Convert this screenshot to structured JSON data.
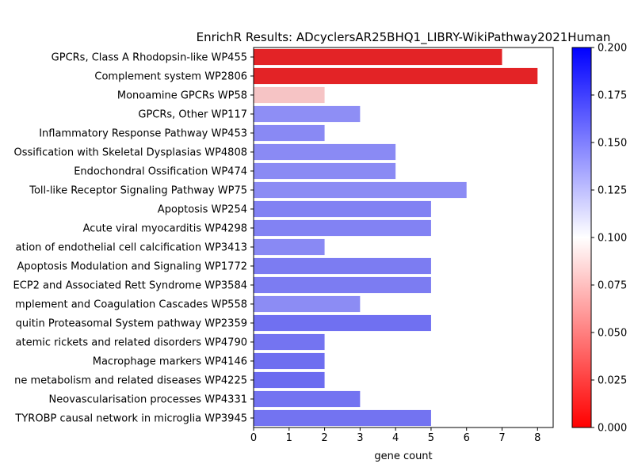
{
  "chart_data": {
    "type": "bar",
    "orientation": "horizontal",
    "title": "EnrichR Results: ADcyclersAR25BHQ1_LIBRY-WikiPathway2021Human",
    "xlabel": "gene count",
    "ylabel": "",
    "xlim": [
      0,
      8.44
    ],
    "xticks": [
      "0",
      "1",
      "2",
      "3",
      "4",
      "5",
      "6",
      "7",
      "8"
    ],
    "grid": false,
    "legend": "none",
    "categories": [
      "GPCRs, Class A Rhodopsin-like WP455",
      "Complement system WP2806",
      "Monoamine GPCRs WP58",
      "GPCRs, Other WP117",
      "Inflammatory Response Pathway WP453",
      "Ossification with Skeletal Dysplasias WP4808",
      "Endochondral Ossification WP474",
      "Toll-like Receptor Signaling Pathway WP75",
      "Apoptosis WP254",
      "Acute viral myocarditis WP4298",
      "ation of endothelial cell calcification WP3413",
      "Apoptosis Modulation and Signaling WP1772",
      "ECP2 and Associated Rett Syndrome WP3584",
      "mplement and Coagulation Cascades WP558",
      "quitin Proteasomal System pathway WP2359",
      "atemic rickets and related disorders WP4790",
      "Macrophage markers WP4146",
      "ne metabolism and related diseases WP4225",
      "Neovascularisation processes WP4331",
      "TYROBP causal network in microglia WP3945"
    ],
    "values": [
      7,
      8,
      2,
      3,
      2,
      4,
      4,
      6,
      5,
      5,
      2,
      5,
      5,
      3,
      5,
      2,
      2,
      2,
      3,
      5
    ],
    "colors": [
      "#e32326",
      "#e32326",
      "#f6c4c5",
      "#8e8ef5",
      "#8989f4",
      "#8a8af4",
      "#8a8af4",
      "#8b8bf4",
      "#8282f3",
      "#8282f3",
      "#8989f4",
      "#7c7cf2",
      "#7c7cf2",
      "#8c8cf4",
      "#7070f1",
      "#7474f1",
      "#6e6ef0",
      "#6c6cf0",
      "#7373f1",
      "#7373f1"
    ],
    "colorbar": {
      "range": [
        0,
        0.2
      ],
      "ticks": [
        "0.000",
        "0.025",
        "0.050",
        "0.075",
        "0.100",
        "0.125",
        "0.150",
        "0.175",
        "0.200"
      ],
      "colors": [
        "#ff0000",
        "#ffffff",
        "#0000ff"
      ]
    }
  }
}
